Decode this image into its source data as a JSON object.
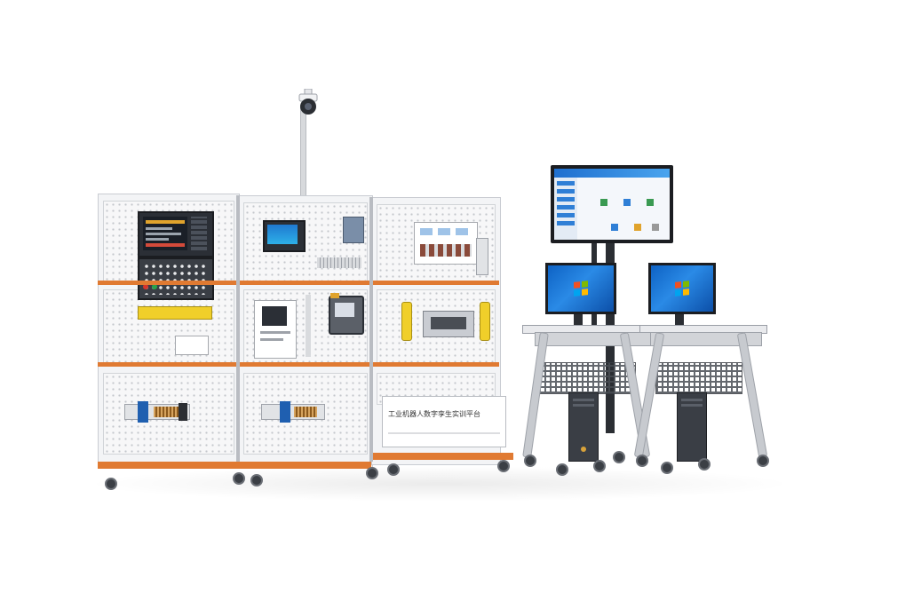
{
  "scene": {
    "big_monitor": {
      "app_title": "",
      "tiles": [
        "",
        "",
        "",
        ""
      ]
    },
    "info_board": {
      "title_line": "工业机器人数字孪生实训平台",
      "subtitle_line": ""
    },
    "colors": {
      "accent_rail": "#e07a32",
      "frame": "#c9ccd2",
      "screen_blue": "#1f7ad8",
      "pegboard": "#f7f7f8"
    },
    "icons": [
      "camera-icon",
      "windows-logo-icon"
    ]
  }
}
